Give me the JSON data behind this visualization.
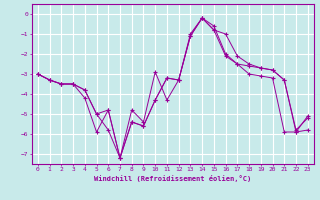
{
  "background_color": "#c8eaea",
  "grid_color": "#ffffff",
  "line_color": "#990099",
  "marker_color": "#990099",
  "xlabel": "Windchill (Refroidissement éolien,°C)",
  "xlim": [
    -0.5,
    23.5
  ],
  "ylim": [
    -7.5,
    0.5
  ],
  "yticks": [
    0,
    -1,
    -2,
    -3,
    -4,
    -5,
    -6,
    -7
  ],
  "xticks": [
    0,
    1,
    2,
    3,
    4,
    5,
    6,
    7,
    8,
    9,
    10,
    11,
    12,
    13,
    14,
    15,
    16,
    17,
    18,
    19,
    20,
    21,
    22,
    23
  ],
  "line1_x": [
    0,
    1,
    2,
    3,
    4,
    5,
    6,
    7,
    8,
    9,
    10,
    11,
    12,
    13,
    14,
    15,
    16,
    17,
    18,
    19,
    20,
    21,
    22,
    23
  ],
  "line1_y": [
    -3.0,
    -3.3,
    -3.5,
    -3.5,
    -4.2,
    -5.9,
    -4.8,
    -7.2,
    -4.8,
    -5.4,
    -2.9,
    -4.3,
    -3.3,
    -1.1,
    -0.2,
    -0.8,
    -1.0,
    -2.1,
    -2.5,
    -2.7,
    -2.8,
    -3.3,
    -5.9,
    -5.8
  ],
  "line2_x": [
    0,
    1,
    2,
    3,
    4,
    5,
    6,
    7,
    8,
    9,
    10,
    11,
    12,
    13,
    14,
    15,
    16,
    17,
    18,
    19,
    20,
    21,
    22,
    23
  ],
  "line2_y": [
    -3.0,
    -3.3,
    -3.5,
    -3.5,
    -3.8,
    -5.0,
    -4.8,
    -7.2,
    -5.4,
    -5.6,
    -4.3,
    -3.2,
    -3.3,
    -1.0,
    -0.2,
    -0.8,
    -2.1,
    -2.5,
    -2.6,
    -2.7,
    -2.8,
    -3.3,
    -5.8,
    -5.2
  ],
  "line3_x": [
    0,
    1,
    2,
    3,
    4,
    5,
    6,
    7,
    8,
    9,
    10,
    11,
    12,
    13,
    14,
    15,
    16,
    17,
    18,
    19,
    20,
    21,
    22,
    23
  ],
  "line3_y": [
    -3.0,
    -3.3,
    -3.5,
    -3.5,
    -3.8,
    -5.0,
    -5.8,
    -7.2,
    -5.4,
    -5.6,
    -4.3,
    -3.2,
    -3.3,
    -1.1,
    -0.2,
    -0.6,
    -2.0,
    -2.5,
    -3.0,
    -3.1,
    -3.2,
    -5.9,
    -5.9,
    -5.1
  ]
}
